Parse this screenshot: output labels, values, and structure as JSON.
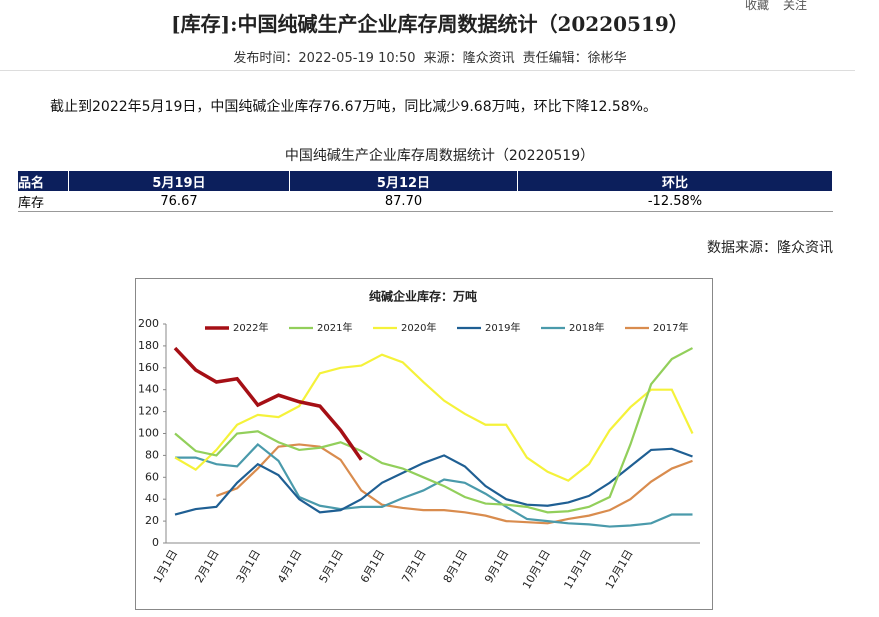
{
  "header": {
    "title": "[库存]:中国纯碱生产企业库存周数据统计（20220519）",
    "meta": [
      "发布时间：2022-05-19 10:50",
      "来源：隆众资讯",
      "责任编辑：徐彬华"
    ],
    "toolbar": [
      "收藏",
      "关注"
    ]
  },
  "paragraph": "截止到2022年5月19日，中国纯碱企业库存76.67万吨，同比减少9.68万吨，环比下降12.58%。",
  "table": {
    "title": "中国纯碱生产企业库存周数据统计（20220519）",
    "columns": [
      "品名",
      "5月19日",
      "5月12日",
      "环比"
    ],
    "rows": [
      [
        "库存",
        "76.67",
        "87.70",
        "-12.58%"
      ]
    ]
  },
  "source": "数据来源：隆众资讯",
  "chart_data": {
    "type": "line",
    "title": "纯碱企业库存：万吨",
    "categories": [
      "1月1日",
      null,
      "2月1日",
      null,
      "3月1日",
      null,
      "4月1日",
      null,
      "5月1日",
      null,
      "6月1日",
      null,
      "7月1日",
      null,
      "8月1日",
      null,
      "9月1日",
      null,
      "10月1日",
      null,
      "11月1日",
      null,
      "12月1日",
      null,
      null,
      null
    ],
    "series": [
      {
        "name": "2022年",
        "color": "#a50f15",
        "values": [
          178,
          158,
          147,
          150,
          126,
          135,
          129,
          125,
          103,
          76,
          null,
          null,
          null,
          null,
          null,
          null,
          null,
          null,
          null,
          null,
          null,
          null,
          null,
          null,
          null,
          null
        ]
      },
      {
        "name": "2021年",
        "color": "#92cf5b",
        "values": [
          100,
          84,
          80,
          100,
          102,
          92,
          85,
          87,
          92,
          84,
          73,
          68,
          60,
          52,
          42,
          36,
          35,
          33,
          28,
          29,
          33,
          42,
          90,
          145,
          168,
          178
        ]
      },
      {
        "name": "2020年",
        "color": "#f5f23a",
        "values": [
          78,
          67,
          85,
          108,
          117,
          115,
          125,
          155,
          160,
          162,
          172,
          165,
          147,
          130,
          118,
          108,
          108,
          78,
          65,
          57,
          72,
          103,
          124,
          140,
          140,
          100
        ]
      },
      {
        "name": "2019年",
        "color": "#1f5f93",
        "values": [
          26,
          31,
          33,
          55,
          72,
          62,
          40,
          28,
          30,
          40,
          55,
          64,
          73,
          80,
          70,
          52,
          40,
          35,
          34,
          37,
          43,
          55,
          70,
          85,
          86,
          79
        ]
      },
      {
        "name": "2018年",
        "color": "#4a9aab",
        "values": [
          78,
          78,
          72,
          70,
          90,
          75,
          42,
          34,
          31,
          33,
          33,
          41,
          48,
          58,
          55,
          45,
          33,
          22,
          20,
          18,
          17,
          15,
          16,
          18,
          26,
          26
        ]
      },
      {
        "name": "2017年",
        "color": "#d98c4e",
        "values": [
          null,
          null,
          43,
          50,
          68,
          88,
          90,
          88,
          76,
          48,
          35,
          32,
          30,
          30,
          28,
          25,
          20,
          19,
          18,
          22,
          25,
          30,
          40,
          56,
          68,
          75
        ]
      }
    ],
    "ylim": [
      0,
      200
    ],
    "yticks": [
      0,
      20,
      40,
      60,
      80,
      100,
      120,
      140,
      160,
      180,
      200
    ],
    "grid": false
  }
}
